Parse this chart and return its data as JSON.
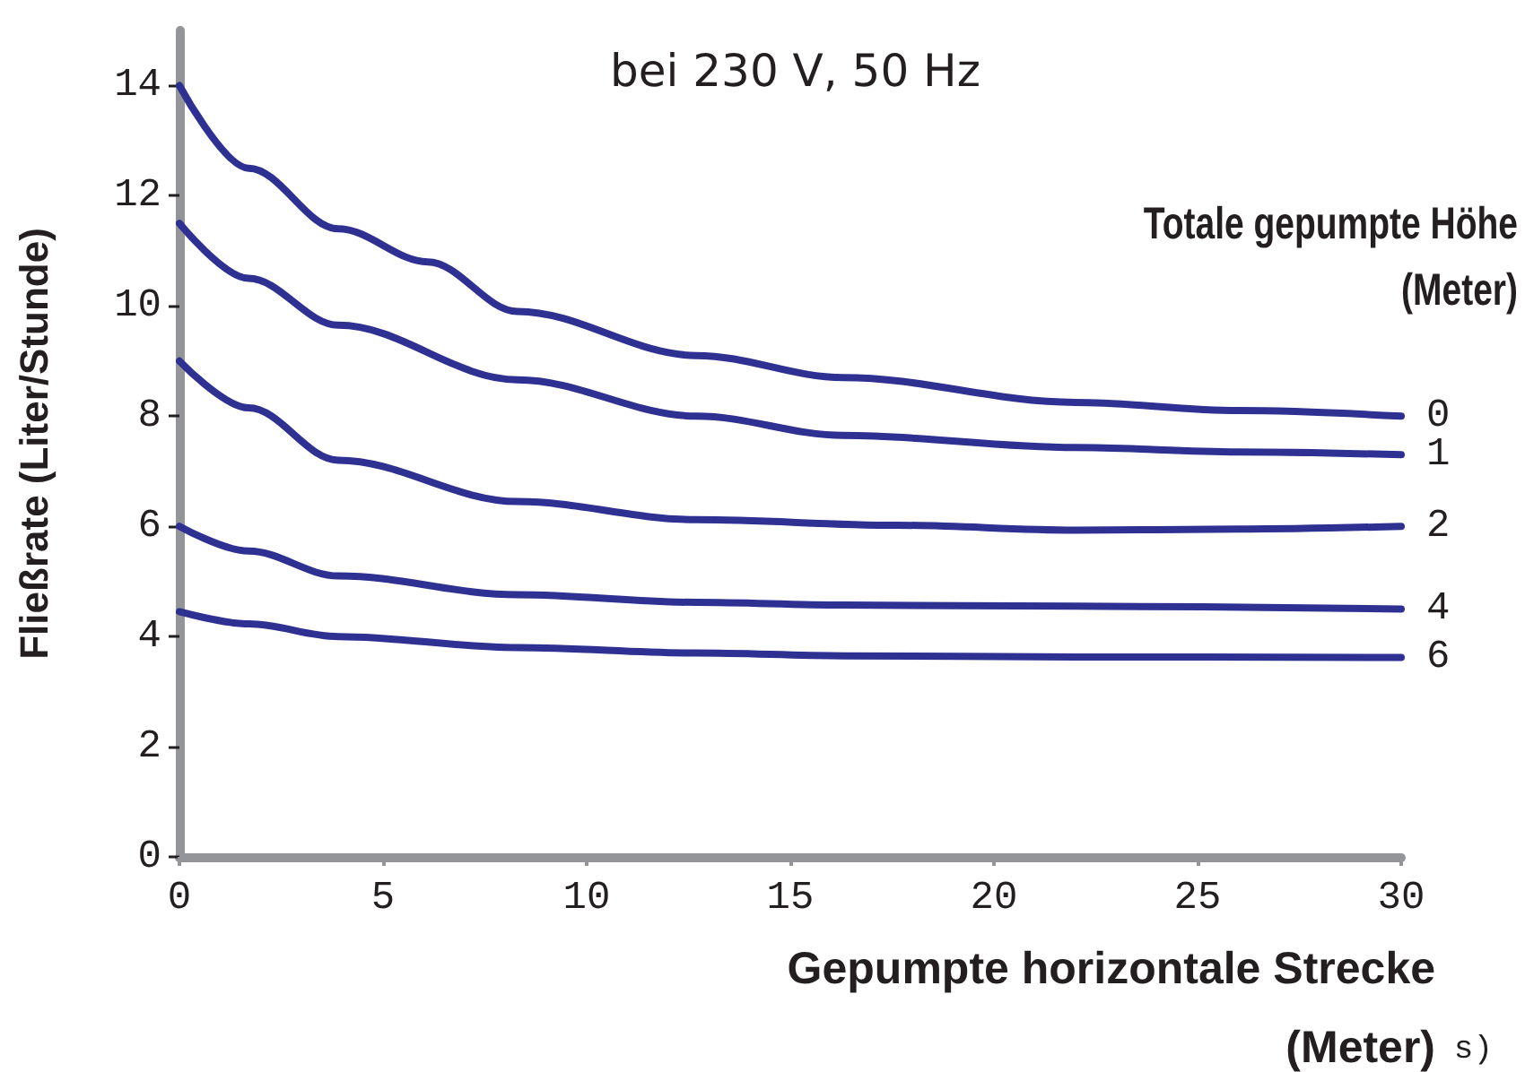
{
  "chart_data": {
    "type": "line",
    "title": "bei 230 V, 50 Hz",
    "xlabel": "Gepumpte horizontale Strecke\n(Meter)",
    "ylabel": "Fließrate (Liter/Stunde)",
    "legend_title": "Totale gepumpte Höhe\n(Meter)",
    "annotations": [
      "s)"
    ],
    "series": [
      {
        "name": "0",
        "color": "#2e3192",
        "x": [
          0,
          1.7,
          3.9,
          6.1,
          8.3,
          12.7,
          16.3,
          22,
          26,
          30
        ],
        "values": [
          14.0,
          12.5,
          11.4,
          10.8,
          9.9,
          9.1,
          8.7,
          8.25,
          8.1,
          8.0
        ]
      },
      {
        "name": "1",
        "color": "#2e3192",
        "x": [
          0,
          1.7,
          3.9,
          8.3,
          12.7,
          16.3,
          22,
          26,
          30
        ],
        "values": [
          11.5,
          10.5,
          9.65,
          8.66,
          8.0,
          7.65,
          7.43,
          7.35,
          7.3
        ]
      },
      {
        "name": "2",
        "color": "#2e3192",
        "x": [
          0,
          1.7,
          3.9,
          8.3,
          12.7,
          17.6,
          22,
          26,
          30
        ],
        "values": [
          9.0,
          8.15,
          7.2,
          6.45,
          6.12,
          6.02,
          5.93,
          5.95,
          6.0
        ]
      },
      {
        "name": "4",
        "color": "#2e3192",
        "x": [
          0,
          1.7,
          3.9,
          8.3,
          12.7,
          16.3,
          22,
          30
        ],
        "values": [
          6.0,
          5.55,
          5.1,
          4.76,
          4.62,
          4.57,
          4.55,
          4.5
        ]
      },
      {
        "name": "6",
        "color": "#2e3192",
        "x": [
          0,
          1.7,
          3.9,
          8.3,
          12.7,
          16.3,
          22,
          30
        ],
        "values": [
          4.45,
          4.23,
          4.0,
          3.8,
          3.7,
          3.65,
          3.63,
          3.62
        ]
      }
    ],
    "xlim": [
      0,
      30
    ],
    "xticks": [
      0,
      5,
      10,
      15,
      20,
      25,
      30
    ],
    "ylim": [
      0,
      15
    ],
    "yticks": [
      0,
      2,
      4,
      6,
      8,
      10,
      12,
      14
    ],
    "grid": false,
    "legend": false,
    "marker": "none",
    "line_style": "solid"
  }
}
